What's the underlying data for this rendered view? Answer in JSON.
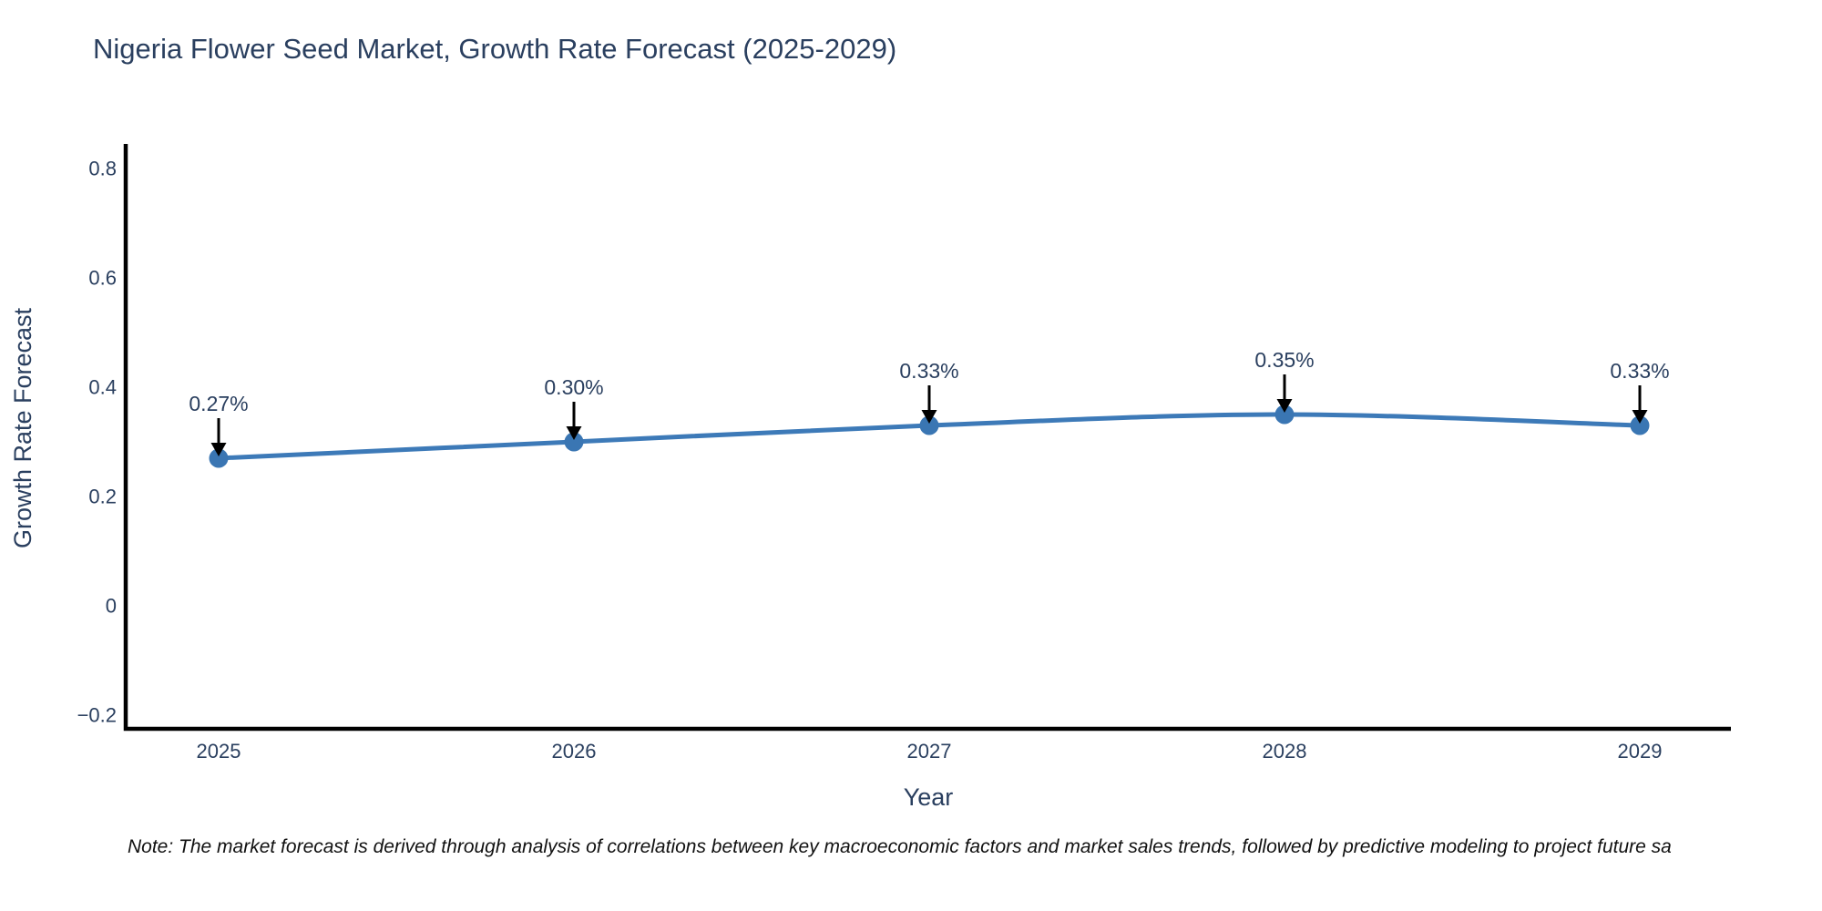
{
  "chart_data": {
    "type": "line",
    "title": "Nigeria Flower Seed Market, Growth Rate Forecast (2025-2029)",
    "xlabel": "Year",
    "ylabel": "Growth Rate Forecast",
    "categories": [
      "2025",
      "2026",
      "2027",
      "2028",
      "2029"
    ],
    "series": [
      {
        "name": "Growth Rate Forecast",
        "values": [
          0.27,
          0.3,
          0.33,
          0.35,
          0.33
        ],
        "point_labels": [
          "0.27%",
          "0.30%",
          "0.33%",
          "0.35%",
          "0.33%"
        ]
      }
    ],
    "ytick_values": [
      0.8,
      0.6,
      0.4,
      0.2,
      0,
      -0.2
    ],
    "ytick_labels": [
      "0.8",
      "0.6",
      "0.4",
      "0.2",
      "0",
      "−0.2"
    ],
    "ylim": [
      -0.23,
      0.85
    ],
    "grid": false,
    "legend_position": "none",
    "line_color": "#3d7ab8",
    "marker_color": "#3a76b3",
    "arrow_color": "#000000",
    "axis_color": "#000000",
    "text_color": "#2a3f5f"
  },
  "note": "Note: The market forecast is derived through analysis of correlations between key macroeconomic factors and market sales trends, followed by predictive modeling to project future sa"
}
